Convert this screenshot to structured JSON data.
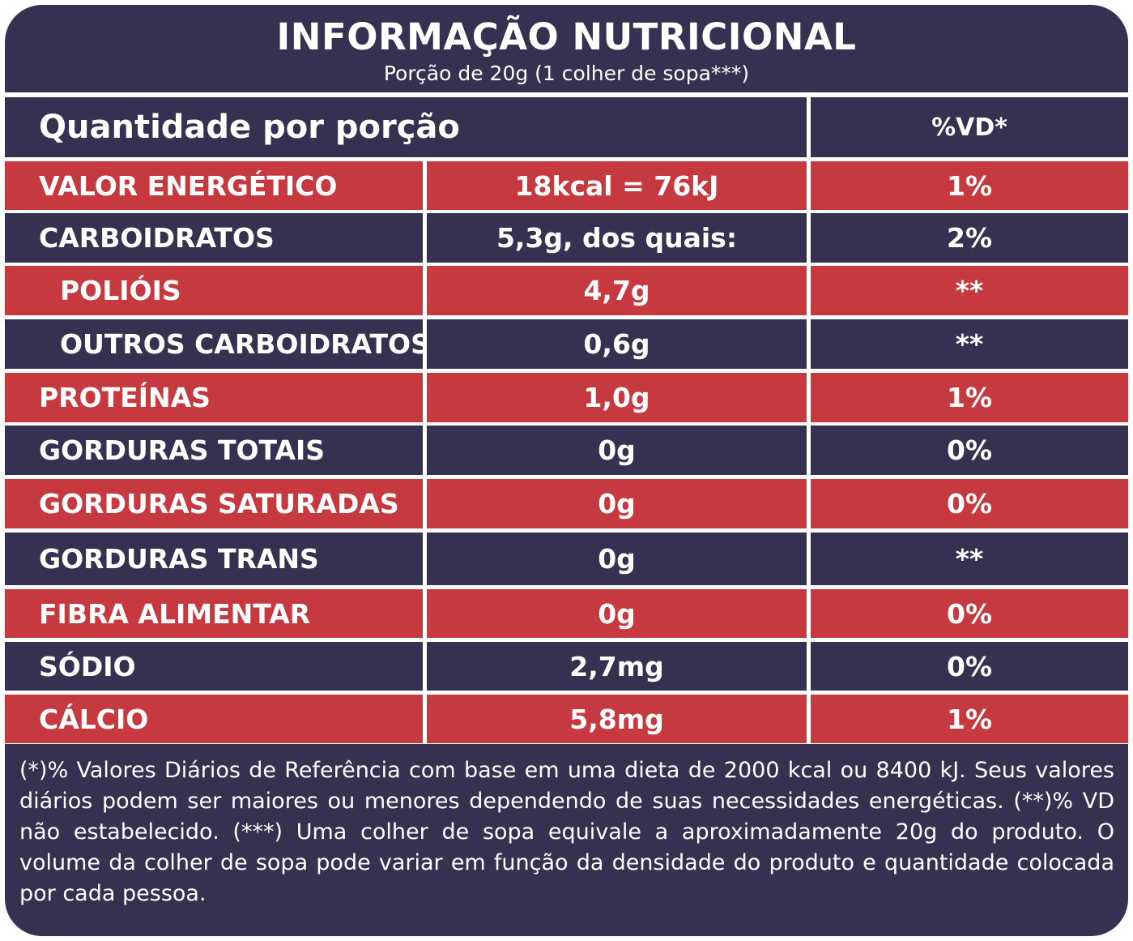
{
  "header": {
    "title": "INFORMAÇÃO NUTRICIONAL",
    "serving": "Porção de 20g (1 colher de sopa***)"
  },
  "table": {
    "header_label": "Quantidade por porção",
    "header_vd": "%VD*",
    "rows": [
      {
        "name": "VALOR ENERGÉTICO",
        "amount": "18kcal = 76kJ",
        "vd": "1%"
      },
      {
        "name": "CARBOIDRATOS",
        "amount": "5,3g, dos quais:",
        "vd": "2%"
      },
      {
        "name": "POLIÓIS",
        "amount": "4,7g",
        "vd": "**"
      },
      {
        "name": "OUTROS CARBOIDRATOS",
        "amount": "0,6g",
        "vd": "**"
      },
      {
        "name": "PROTEÍNAS",
        "amount": "1,0g",
        "vd": "1%"
      },
      {
        "name": "GORDURAS TOTAIS",
        "amount": "0g",
        "vd": "0%"
      },
      {
        "name": "GORDURAS SATURADAS",
        "amount": "0g",
        "vd": "0%"
      },
      {
        "name": "GORDURAS TRANS",
        "amount": "0g",
        "vd": "**"
      },
      {
        "name": "FIBRA ALIMENTAR",
        "amount": "0g",
        "vd": "0%"
      },
      {
        "name": "SÓDIO",
        "amount": "2,7mg",
        "vd": "0%"
      },
      {
        "name": "CÁLCIO",
        "amount": "5,8mg",
        "vd": "1%"
      }
    ]
  },
  "footnote": "(*)% Valores Diários de Referência com base em uma dieta de 2000 kcal ou 8400 kJ. Seus valores diários podem ser maiores ou menores dependendo de suas necessidades energéticas. (**)% VD não estabelecido. (***) Uma colher de sopa equivale a aproximadamente 20g do produto. O volume da colher de sopa pode variar em função da densidade do produto e quantidade colocada por cada pessoa.",
  "colors": {
    "navy": "#363150",
    "red": "#c6393e",
    "text": "#ffffff"
  }
}
